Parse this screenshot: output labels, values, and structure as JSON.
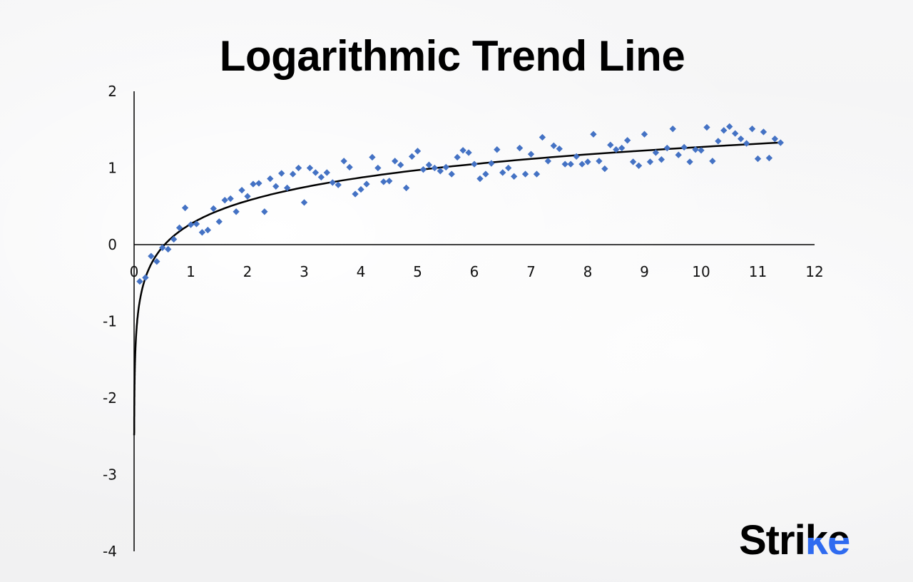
{
  "chart_data": {
    "type": "scatter",
    "title": "Logarithmic Trend Line",
    "xlabel": "",
    "ylabel": "",
    "xlim": [
      0,
      12
    ],
    "ylim": [
      -4,
      2
    ],
    "x_ticks": [
      "0",
      "1",
      "2",
      "3",
      "4",
      "5",
      "6",
      "7",
      "8",
      "9",
      "10",
      "11",
      "12"
    ],
    "y_ticks": [
      "2",
      "1",
      "0",
      "-1",
      "-2",
      "-3",
      "-4"
    ],
    "grid": false,
    "point_color": "#4472c4",
    "trendline": {
      "type": "logarithmic",
      "color": "#000000",
      "a": 0.436,
      "b": 0.27,
      "x_range": [
        0.0018,
        11.4
      ]
    },
    "x": [
      0.1,
      0.2,
      0.3,
      0.4,
      0.5,
      0.6,
      0.7,
      0.8,
      0.9,
      1.0,
      1.1,
      1.2,
      1.3,
      1.4,
      1.5,
      1.6,
      1.7,
      1.8,
      1.9,
      2.0,
      2.1,
      2.2,
      2.3,
      2.4,
      2.5,
      2.6,
      2.7,
      2.8,
      2.9,
      3.0,
      3.1,
      3.2,
      3.3,
      3.4,
      3.5,
      3.6,
      3.7,
      3.8,
      3.9,
      4.0,
      4.1,
      4.2,
      4.3,
      4.4,
      4.5,
      4.6,
      4.7,
      4.8,
      4.9,
      5.0,
      5.1,
      5.2,
      5.3,
      5.4,
      5.5,
      5.6,
      5.7,
      5.8,
      5.9,
      6.0,
      6.1,
      6.2,
      6.3,
      6.4,
      6.5,
      6.6,
      6.7,
      6.8,
      6.9,
      7.0,
      7.1,
      7.2,
      7.3,
      7.4,
      7.5,
      7.6,
      7.7,
      7.8,
      7.9,
      8.0,
      8.1,
      8.2,
      8.3,
      8.4,
      8.5,
      8.6,
      8.7,
      8.8,
      8.9,
      9.0,
      9.1,
      9.2,
      9.3,
      9.4,
      9.5,
      9.6,
      9.7,
      9.8,
      9.9,
      10.0,
      10.1,
      10.2,
      10.3,
      10.4,
      10.5,
      10.6,
      10.7,
      10.8,
      10.9,
      11.0,
      11.1,
      11.2,
      11.3,
      11.4
    ],
    "y": [
      -0.48,
      -0.43,
      -0.15,
      -0.22,
      -0.04,
      -0.06,
      0.07,
      0.22,
      0.48,
      0.26,
      0.27,
      0.16,
      0.19,
      0.47,
      0.3,
      0.58,
      0.6,
      0.43,
      0.71,
      0.63,
      0.79,
      0.8,
      0.43,
      0.86,
      0.76,
      0.93,
      0.74,
      0.92,
      1.0,
      0.55,
      1.0,
      0.94,
      0.88,
      0.94,
      0.81,
      0.78,
      1.09,
      1.01,
      0.66,
      0.72,
      0.79,
      1.14,
      1.0,
      0.82,
      0.83,
      1.09,
      1.04,
      0.74,
      1.15,
      1.22,
      0.98,
      1.04,
      1.0,
      0.96,
      1.01,
      0.92,
      1.14,
      1.23,
      1.2,
      1.05,
      0.86,
      0.92,
      1.06,
      1.24,
      0.94,
      1.0,
      0.89,
      1.26,
      0.92,
      1.18,
      0.92,
      1.4,
      1.09,
      1.29,
      1.25,
      1.05,
      1.05,
      1.15,
      1.05,
      1.08,
      1.44,
      1.09,
      0.99,
      1.3,
      1.24,
      1.26,
      1.36,
      1.08,
      1.03,
      1.44,
      1.08,
      1.2,
      1.11,
      1.26,
      1.51,
      1.17,
      1.27,
      1.08,
      1.24,
      1.23,
      1.53,
      1.09,
      1.35,
      1.49,
      1.54,
      1.45,
      1.38,
      1.32,
      1.51,
      1.12,
      1.47,
      1.13,
      1.38,
      1.33
    ]
  },
  "logo": {
    "text_main": "Stri",
    "text_accent": "ke",
    "accent_color": "#2f6bf0"
  }
}
